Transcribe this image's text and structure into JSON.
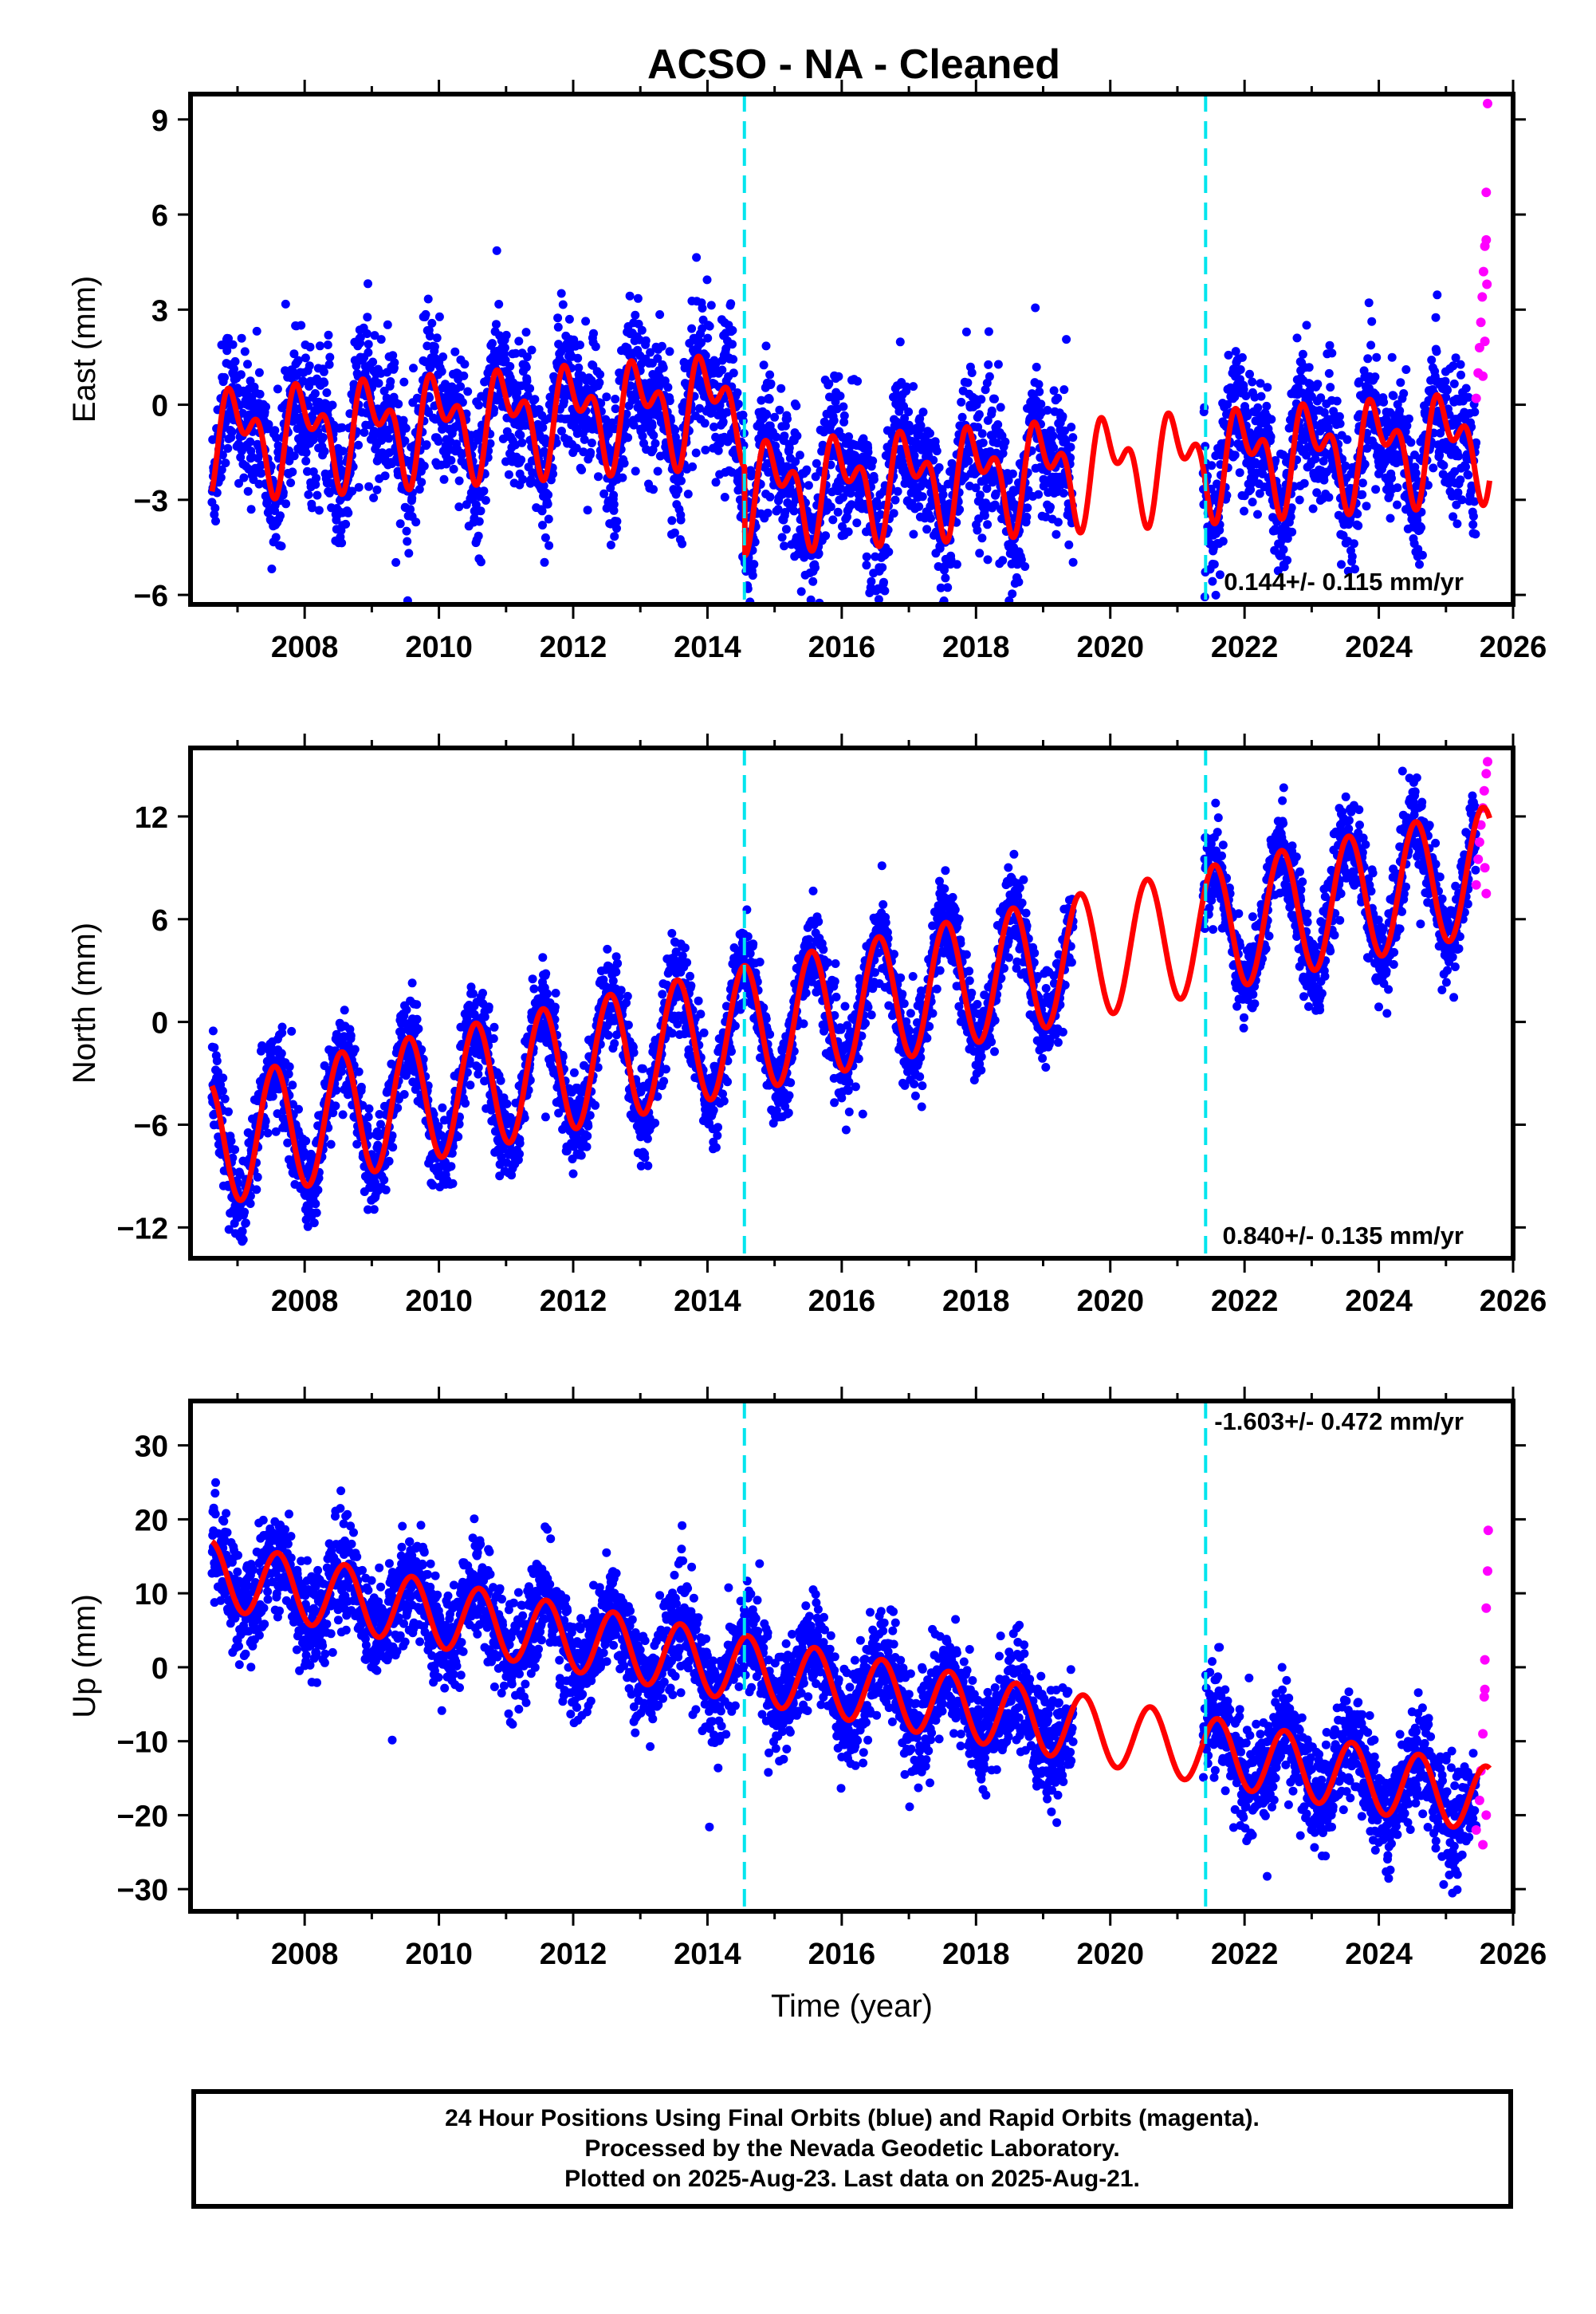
{
  "title": "ACSO  - NA - Cleaned",
  "chart_data": [
    {
      "type": "scatter",
      "name": "east",
      "ylabel": "East (mm)",
      "xlim": [
        2006.3,
        2026.0
      ],
      "ylim": [
        -6.3,
        9.8
      ],
      "yticks": [
        -6,
        -3,
        0,
        3,
        6,
        9
      ],
      "yticklabels": [
        "−6",
        "−3",
        "0",
        "3",
        "6",
        "9"
      ],
      "xticks": [
        2008,
        2010,
        2012,
        2014,
        2016,
        2018,
        2020,
        2022,
        2024,
        2026
      ],
      "rate_label": "0.144+/- 0.115 mm/yr",
      "rate_position": "bottom-right",
      "model": {
        "rate": 0.144,
        "offset": 0.25,
        "ref_year": 2016,
        "annual_amp": 1.2,
        "annual_phase": 0.75,
        "semi_amp": 0.9,
        "semi_phase": 0.7
      },
      "offsets": [
        {
          "x": 2014.55,
          "dy": -2.8
        }
      ],
      "noise": 1.1,
      "rapid": [
        [
          2025.45,
          0.2
        ],
        [
          2025.48,
          1.0
        ],
        [
          2025.5,
          1.8
        ],
        [
          2025.52,
          2.6
        ],
        [
          2025.54,
          3.4
        ],
        [
          2025.56,
          4.2
        ],
        [
          2025.58,
          5.0
        ],
        [
          2025.6,
          5.2
        ],
        [
          2025.6,
          6.7
        ],
        [
          2025.62,
          9.5
        ],
        [
          2025.55,
          0.9
        ],
        [
          2025.58,
          2.0
        ],
        [
          2025.61,
          3.8
        ]
      ]
    },
    {
      "type": "scatter",
      "name": "north",
      "ylabel": "North (mm)",
      "xlim": [
        2006.3,
        2026.0
      ],
      "ylim": [
        -13.8,
        16.0
      ],
      "yticks": [
        -12,
        -6,
        0,
        6,
        12
      ],
      "yticklabels": [
        "−12",
        "−6",
        "0",
        "6",
        "12"
      ],
      "xticks": [
        2008,
        2010,
        2012,
        2014,
        2016,
        2018,
        2020,
        2022,
        2024,
        2026
      ],
      "rate_label": "0.840+/- 0.135 mm/yr",
      "rate_position": "bottom-right",
      "model": {
        "rate": 0.84,
        "offset": 0.8,
        "ref_year": 2016,
        "annual_amp": 3.7,
        "annual_phase": 0.3,
        "semi_amp": 0.0,
        "semi_phase": 0.0
      },
      "offsets": [],
      "noise": 1.3,
      "rapid": [
        [
          2025.45,
          8.0
        ],
        [
          2025.48,
          9.5
        ],
        [
          2025.5,
          10.5
        ],
        [
          2025.52,
          11.5
        ],
        [
          2025.55,
          12.5
        ],
        [
          2025.57,
          13.5
        ],
        [
          2025.6,
          14.5
        ],
        [
          2025.62,
          15.2
        ],
        [
          2025.6,
          7.5
        ],
        [
          2025.58,
          9.0
        ]
      ]
    },
    {
      "type": "scatter",
      "name": "up",
      "ylabel": "Up (mm)",
      "xlim": [
        2006.3,
        2026.0
      ],
      "ylim": [
        -33.0,
        36.0
      ],
      "yticks": [
        -30,
        -20,
        -10,
        0,
        10,
        20,
        30
      ],
      "yticklabels": [
        "−30",
        "−20",
        "−10",
        "0",
        "10",
        "20",
        "30"
      ],
      "xticks": [
        2008,
        2010,
        2012,
        2014,
        2016,
        2018,
        2020,
        2022,
        2024,
        2026
      ],
      "xlabel": "Time (year)",
      "rate_label": "-1.603+/- 0.472 mm/yr",
      "rate_position": "top-right",
      "model": {
        "rate": -1.603,
        "offset": -2.5,
        "ref_year": 2016,
        "annual_amp": 4.5,
        "annual_phase": 0.35,
        "semi_amp": 0.0,
        "semi_phase": 0.0
      },
      "offsets": [],
      "noise": 3.5,
      "rapid": [
        [
          2025.45,
          -22.0
        ],
        [
          2025.5,
          -18.0
        ],
        [
          2025.52,
          -14.0
        ],
        [
          2025.55,
          -9.0
        ],
        [
          2025.57,
          -4.0
        ],
        [
          2025.58,
          1.0
        ],
        [
          2025.6,
          8.0
        ],
        [
          2025.62,
          13.0
        ],
        [
          2025.63,
          18.5
        ],
        [
          2025.6,
          -20.0
        ],
        [
          2025.55,
          -24.0
        ],
        [
          2025.58,
          -3.0
        ]
      ]
    }
  ],
  "equipment_changes": [
    2014.55,
    2021.42
  ],
  "data_span": [
    2006.62,
    2025.65
  ],
  "gaps": [
    [
      2019.45,
      2021.38
    ]
  ],
  "colors": {
    "final": "#0000ff",
    "rapid": "#ff00ff",
    "model": "#ff0000",
    "events": "#00e5ee"
  },
  "caption": [
    "24 Hour Positions Using Final Orbits (blue) and Rapid Orbits (magenta).",
    "Processed by the Nevada Geodetic Laboratory.",
    "Plotted on 2025-Aug-23. Last data on 2025-Aug-21."
  ]
}
